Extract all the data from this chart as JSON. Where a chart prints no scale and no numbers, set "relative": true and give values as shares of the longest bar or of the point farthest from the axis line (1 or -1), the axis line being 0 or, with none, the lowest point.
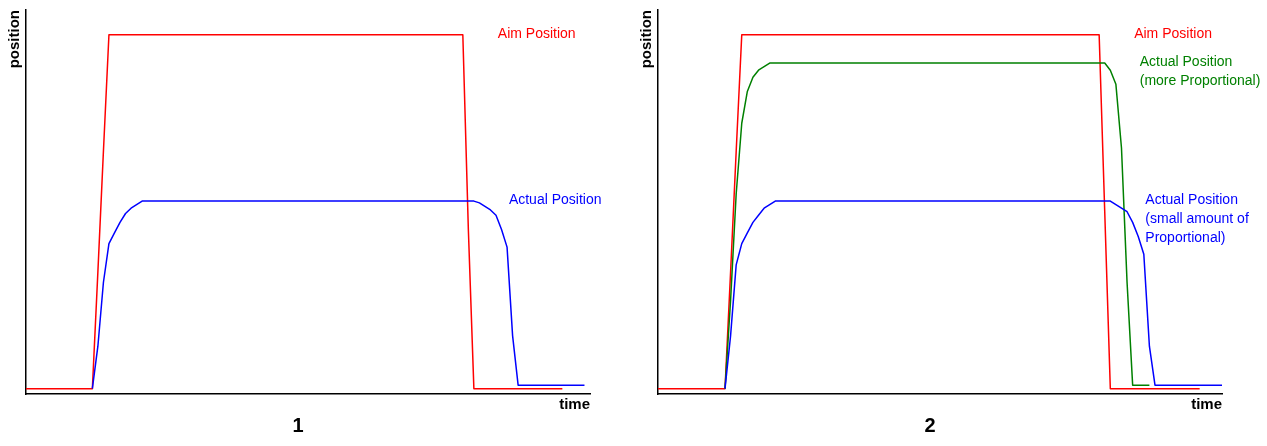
{
  "chart_data": [
    {
      "type": "line",
      "title": "1",
      "xlabel": "time",
      "ylabel": "position",
      "relative": true,
      "tick_labels": false,
      "grid": false,
      "legend": false,
      "marker": "none",
      "line_style": "solid",
      "categories": [
        null,
        null,
        null,
        null,
        null,
        null,
        null,
        null,
        null,
        null,
        null,
        null,
        null,
        null,
        null,
        null,
        null,
        null,
        null,
        null,
        null,
        null,
        null,
        null,
        null,
        null,
        null,
        null,
        null,
        null,
        null,
        null,
        null,
        null,
        null,
        null,
        null,
        null,
        null,
        null,
        null,
        null,
        null,
        null,
        null,
        null,
        null,
        null,
        null,
        null,
        null,
        null,
        null,
        null,
        null,
        null,
        null,
        null,
        null,
        null,
        null,
        null,
        null,
        null,
        null,
        null,
        null,
        null,
        null,
        null,
        null,
        null,
        null,
        null,
        null,
        null,
        null,
        null,
        null,
        null,
        null,
        null,
        null,
        null,
        null,
        null,
        null,
        null,
        null,
        null,
        null,
        null,
        null,
        null,
        null,
        null,
        null,
        null,
        null,
        null,
        null,
        null,
        null
      ],
      "series": [
        {
          "name": "Aim Position",
          "color": "#ff0000",
          "values": [
            0,
            0,
            0,
            0,
            0,
            0,
            0,
            0,
            0,
            0,
            0,
            0,
            0,
            0.33,
            0.67,
            1,
            1,
            1,
            1,
            1,
            1,
            1,
            1,
            1,
            1,
            1,
            1,
            1,
            1,
            1,
            1,
            1,
            1,
            1,
            1,
            1,
            1,
            1,
            1,
            1,
            1,
            1,
            1,
            1,
            1,
            1,
            1,
            1,
            1,
            1,
            1,
            1,
            1,
            1,
            1,
            1,
            1,
            1,
            1,
            1,
            1,
            1,
            1,
            1,
            1,
            1,
            1,
            1,
            1,
            1,
            1,
            1,
            1,
            1,
            1,
            1,
            1,
            1,
            1,
            1,
            0.45,
            0,
            0,
            0,
            0,
            0,
            0,
            0,
            0,
            0,
            0,
            0,
            0,
            0,
            0,
            0,
            0,
            0,
            null,
            null,
            null,
            null,
            null
          ]
        },
        {
          "name": "Actual Position",
          "color": "#0000ff",
          "values": [
            null,
            null,
            null,
            null,
            null,
            null,
            null,
            null,
            null,
            null,
            null,
            null,
            0,
            0.12,
            0.3,
            0.41,
            0.44,
            0.47,
            0.495,
            0.51,
            0.52,
            0.53,
            0.53,
            0.53,
            0.53,
            0.53,
            0.53,
            0.53,
            0.53,
            0.53,
            0.53,
            0.53,
            0.53,
            0.53,
            0.53,
            0.53,
            0.53,
            0.53,
            0.53,
            0.53,
            0.53,
            0.53,
            0.53,
            0.53,
            0.53,
            0.53,
            0.53,
            0.53,
            0.53,
            0.53,
            0.53,
            0.53,
            0.53,
            0.53,
            0.53,
            0.53,
            0.53,
            0.53,
            0.53,
            0.53,
            0.53,
            0.53,
            0.53,
            0.53,
            0.53,
            0.53,
            0.53,
            0.53,
            0.53,
            0.53,
            0.53,
            0.53,
            0.53,
            0.53,
            0.53,
            0.53,
            0.53,
            0.53,
            0.53,
            0.53,
            0.53,
            0.53,
            0.525,
            0.515,
            0.505,
            0.49,
            0.45,
            0.4,
            0.15,
            0.01,
            0.01,
            0.01,
            0.01,
            0.01,
            0.01,
            0.01,
            0.01,
            0.01,
            0.01,
            0.01,
            0.01,
            0.01,
            null
          ]
        }
      ]
    },
    {
      "type": "line",
      "title": "2",
      "xlabel": "time",
      "ylabel": "position",
      "relative": true,
      "tick_labels": false,
      "grid": false,
      "legend": false,
      "marker": "none",
      "line_style": "solid",
      "categories": [
        null,
        null,
        null,
        null,
        null,
        null,
        null,
        null,
        null,
        null,
        null,
        null,
        null,
        null,
        null,
        null,
        null,
        null,
        null,
        null,
        null,
        null,
        null,
        null,
        null,
        null,
        null,
        null,
        null,
        null,
        null,
        null,
        null,
        null,
        null,
        null,
        null,
        null,
        null,
        null,
        null,
        null,
        null,
        null,
        null,
        null,
        null,
        null,
        null,
        null,
        null,
        null,
        null,
        null,
        null,
        null,
        null,
        null,
        null,
        null,
        null,
        null,
        null,
        null,
        null,
        null,
        null,
        null,
        null,
        null,
        null,
        null,
        null,
        null,
        null,
        null,
        null,
        null,
        null,
        null,
        null,
        null,
        null,
        null,
        null,
        null,
        null,
        null,
        null,
        null,
        null,
        null,
        null,
        null,
        null,
        null,
        null,
        null,
        null,
        null,
        null,
        null
      ],
      "series": [
        {
          "name": "Aim Position",
          "color": "#ff0000",
          "values": [
            0,
            0,
            0,
            0,
            0,
            0,
            0,
            0,
            0,
            0,
            0,
            0,
            0,
            0.33,
            0.67,
            1,
            1,
            1,
            1,
            1,
            1,
            1,
            1,
            1,
            1,
            1,
            1,
            1,
            1,
            1,
            1,
            1,
            1,
            1,
            1,
            1,
            1,
            1,
            1,
            1,
            1,
            1,
            1,
            1,
            1,
            1,
            1,
            1,
            1,
            1,
            1,
            1,
            1,
            1,
            1,
            1,
            1,
            1,
            1,
            1,
            1,
            1,
            1,
            1,
            1,
            1,
            1,
            1,
            1,
            1,
            1,
            1,
            1,
            1,
            1,
            1,
            1,
            1,
            1,
            1,
            0.5,
            0,
            0,
            0,
            0,
            0,
            0,
            0,
            0,
            0,
            0,
            0,
            0,
            0,
            0,
            0,
            0,
            0,
            null,
            null,
            null,
            null
          ]
        },
        {
          "name": "Actual Position (more Proportional)",
          "color": "#008000",
          "values": [
            null,
            null,
            null,
            null,
            null,
            null,
            null,
            null,
            null,
            null,
            null,
            null,
            0,
            0.25,
            0.55,
            0.75,
            0.84,
            0.88,
            0.9,
            0.91,
            0.92,
            0.92,
            0.92,
            0.92,
            0.92,
            0.92,
            0.92,
            0.92,
            0.92,
            0.92,
            0.92,
            0.92,
            0.92,
            0.92,
            0.92,
            0.92,
            0.92,
            0.92,
            0.92,
            0.92,
            0.92,
            0.92,
            0.92,
            0.92,
            0.92,
            0.92,
            0.92,
            0.92,
            0.92,
            0.92,
            0.92,
            0.92,
            0.92,
            0.92,
            0.92,
            0.92,
            0.92,
            0.92,
            0.92,
            0.92,
            0.92,
            0.92,
            0.92,
            0.92,
            0.92,
            0.92,
            0.92,
            0.92,
            0.92,
            0.92,
            0.92,
            0.92,
            0.92,
            0.92,
            0.92,
            0.92,
            0.92,
            0.92,
            0.92,
            0.92,
            0.92,
            0.9,
            0.86,
            0.68,
            0.3,
            0.01,
            0.01,
            0.01,
            0.01,
            null,
            null,
            null,
            null,
            null,
            null,
            null,
            null,
            null,
            null,
            null,
            null,
            null
          ]
        },
        {
          "name": "Actual Position (small amount of Proportional)",
          "color": "#0000ff",
          "values": [
            null,
            null,
            null,
            null,
            null,
            null,
            null,
            null,
            null,
            null,
            null,
            null,
            0,
            0.15,
            0.35,
            0.41,
            0.44,
            0.47,
            0.49,
            0.51,
            0.52,
            0.53,
            0.53,
            0.53,
            0.53,
            0.53,
            0.53,
            0.53,
            0.53,
            0.53,
            0.53,
            0.53,
            0.53,
            0.53,
            0.53,
            0.53,
            0.53,
            0.53,
            0.53,
            0.53,
            0.53,
            0.53,
            0.53,
            0.53,
            0.53,
            0.53,
            0.53,
            0.53,
            0.53,
            0.53,
            0.53,
            0.53,
            0.53,
            0.53,
            0.53,
            0.53,
            0.53,
            0.53,
            0.53,
            0.53,
            0.53,
            0.53,
            0.53,
            0.53,
            0.53,
            0.53,
            0.53,
            0.53,
            0.53,
            0.53,
            0.53,
            0.53,
            0.53,
            0.53,
            0.53,
            0.53,
            0.53,
            0.53,
            0.53,
            0.53,
            0.53,
            0.53,
            0.52,
            0.51,
            0.5,
            0.47,
            0.43,
            0.38,
            0.12,
            0.01,
            0.01,
            0.01,
            0.01,
            0.01,
            0.01,
            0.01,
            0.01,
            0.01,
            0.01,
            0.01,
            0.01,
            0.01
          ]
        }
      ]
    }
  ]
}
